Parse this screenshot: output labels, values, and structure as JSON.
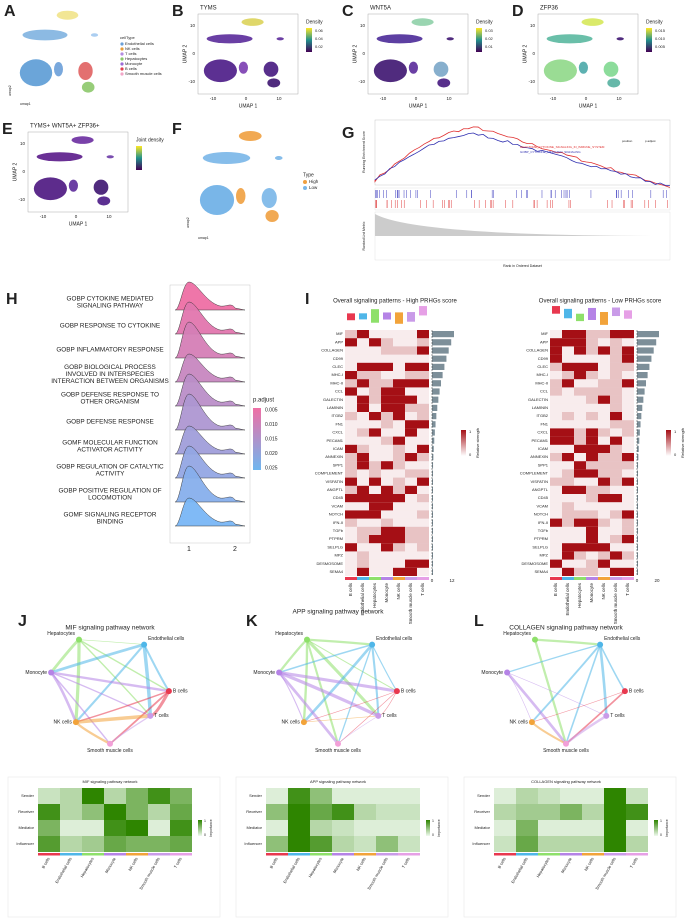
{
  "cell_types": [
    "B cells",
    "Endothelial cells",
    "Hepatocytes",
    "Monocyte",
    "NK cells",
    "Smooth muscle cells",
    "T cells"
  ],
  "A": {
    "letter": "A",
    "legend_title": "cellType",
    "legend": [
      "Endothelial cells",
      "NK cells",
      "T cells",
      "Hepatocytes",
      "Monocyte",
      "B cells",
      "Smooth muscle cells"
    ],
    "x_label": "umap1",
    "y_label": "umap2"
  },
  "B": {
    "letter": "B",
    "title": "TYMS",
    "x_label": "UMAP 1",
    "y_label": "UMAP 2",
    "x_ticks": [
      "-10",
      "0",
      "10"
    ],
    "y_ticks": [
      "10",
      "0",
      "-10"
    ],
    "legend_title": "Density",
    "legend_ticks": [
      "0.06",
      "0.04",
      "0.02"
    ]
  },
  "C": {
    "letter": "C",
    "title": "WNT5A",
    "x_label": "UMAP 1",
    "y_label": "UMAP 2",
    "x_ticks": [
      "-10",
      "0",
      "10"
    ],
    "y_ticks": [
      "10",
      "0",
      "-10"
    ],
    "legend_title": "Density",
    "legend_ticks": [
      "0.03",
      "0.02",
      "0.01"
    ]
  },
  "D": {
    "letter": "D",
    "title": "ZFP36",
    "x_label": "UMAP 1",
    "y_label": "UMAP 2",
    "x_ticks": [
      "-10",
      "0",
      "10"
    ],
    "y_ticks": [
      "10",
      "0",
      "-10"
    ],
    "legend_title": "Density",
    "legend_ticks": [
      "0.015",
      "0.010",
      "0.005"
    ]
  },
  "E": {
    "letter": "E",
    "title": "TYMS+ WNT5A+ ZFP36+",
    "x_label": "UMAP 1",
    "y_label": "UMAP 2",
    "x_ticks": [
      "-10",
      "0",
      "10"
    ],
    "y_ticks": [
      "10",
      "0",
      "-10"
    ],
    "legend_title": "Joint density"
  },
  "F": {
    "letter": "F",
    "legend_title": "Type",
    "legend": [
      "High",
      "Low"
    ],
    "x_label": "umap1",
    "y_label": "umap2"
  },
  "G": {
    "letter": "G",
    "y_label_top": "Running Enrichment Score",
    "y_label_bottom": "Ranked List Metric",
    "x_label": "Rank in Ordered Dataset",
    "sets": [
      "REACTOME_CYTOKINE_SIGNALING_IN_IMMUNE_SYSTEM",
      "GOBP_CYTOKINE_MEDIATED_SIGNALING"
    ],
    "table_header": [
      "position",
      "p.adjust"
    ]
  },
  "H": {
    "letter": "H",
    "terms": [
      "GOBP CYTOKINE MEDIATED\nSIGNALING PATHWAY",
      "GOBP RESPONSE TO CYTOKINE",
      "GOBP INFLAMMATORY RESPONSE",
      "GOBP BIOLOGICAL PROCESS\nINVOLVED IN INTERSPECIES\nINTERACTION BETWEEN ORGANISMS",
      "GOBP DEFENSE RESPONSE TO\nOTHER ORGANISM",
      "GOBP DEFENSE RESPONSE",
      "GOMF MOLECULAR FUNCTION\nACTIVATOR ACTIVITY",
      "GOBP REGULATION OF CATALYTIC\nACTIVITY",
      "GOBP POSITIVE REGULATION OF\nLOCOMOTION",
      "GOMF SIGNALING RECEPTOR\nBINDING"
    ],
    "legend_title": "p.adjust",
    "legend_ticks": [
      "0.005",
      "0.010",
      "0.015",
      "0.020",
      "0.025"
    ],
    "x_ticks": [
      "1",
      "2"
    ]
  },
  "I": {
    "letter": "I",
    "titles": [
      "Overall signaling patterns - High PRHGs score",
      "Overall signaling patterns - Low PRHGs score"
    ],
    "pathways": [
      "MIF",
      "APP",
      "COLLAGEN",
      "CD99",
      "CLEC",
      "MHC-I",
      "MHC-II",
      "CCL",
      "GALECTIN",
      "LAMININ",
      "ITGB2",
      "FN1",
      "CXCL",
      "PECAM1",
      "ICAM",
      "ANNEXIN",
      "SPP1",
      "COMPLEMENT",
      "VISFATIN",
      "ANGPTL",
      "CD45",
      "VCAM",
      "NOTCH",
      "IFN-II",
      "TGFb",
      "PTPRM",
      "SELPLG",
      "MPZ",
      "DESMOSOME",
      "SEMA4"
    ],
    "legend_title": "Relative strength",
    "legend_ticks": [
      "0",
      "1"
    ],
    "bar_ticks": [
      [
        "0",
        "12"
      ],
      [
        "0",
        "20"
      ]
    ]
  },
  "networks": [
    {
      "letter": "J",
      "title": "MIF signaling pathway network",
      "heat_title": "MIF signaling pathway network",
      "rows": [
        "Sender",
        "Receiver",
        "Mediator",
        "Influencer"
      ],
      "legend_title": "Importance",
      "legend_ticks": [
        "0",
        "1"
      ],
      "values": [
        [
          0.2,
          0.3,
          1,
          0.3,
          0.6,
          0.9,
          0.6
        ],
        [
          0.9,
          0.3,
          0.5,
          1,
          0.6,
          0.3,
          0.7
        ],
        [
          0.6,
          0.1,
          0.1,
          0.9,
          1,
          0.1,
          0.9
        ],
        [
          0.8,
          0.3,
          0.4,
          0.7,
          0.6,
          0.6,
          0.7
        ]
      ]
    },
    {
      "letter": "K",
      "title": "APP signaling pathway network",
      "heat_title": "APP signaling pathway network",
      "rows": [
        "Sender",
        "Receiver",
        "Mediator",
        "Influencer"
      ],
      "legend_title": "Importance",
      "legend_ticks": [
        "0",
        "1"
      ],
      "values": [
        [
          0.1,
          0.9,
          0.5,
          0.1,
          0.1,
          0.1,
          0.1
        ],
        [
          0.5,
          1,
          0.7,
          0.9,
          0.3,
          0.2,
          0.2
        ],
        [
          0.1,
          1,
          0.3,
          0.2,
          0.1,
          0.1,
          0.1
        ],
        [
          0.5,
          1,
          0.8,
          0.3,
          0.2,
          0.5,
          0.2
        ]
      ]
    },
    {
      "letter": "L",
      "title": "COLLAGEN signaling pathway network",
      "heat_title": "COLLAGEN signaling pathway network",
      "rows": [
        "Sender",
        "Receiver",
        "Mediator",
        "Influencer"
      ],
      "legend_title": "Importance",
      "legend_ticks": [
        "0",
        "1"
      ],
      "values": [
        [
          0.1,
          0.3,
          0.2,
          0.1,
          0.1,
          1,
          0.2
        ],
        [
          0.3,
          0.4,
          0.4,
          0.6,
          0.3,
          1,
          0.9
        ],
        [
          0.1,
          0.6,
          0.1,
          0.1,
          0.1,
          1,
          0.1
        ],
        [
          0.2,
          0.7,
          0.3,
          0.3,
          0.3,
          1,
          0.3
        ]
      ]
    }
  ]
}
